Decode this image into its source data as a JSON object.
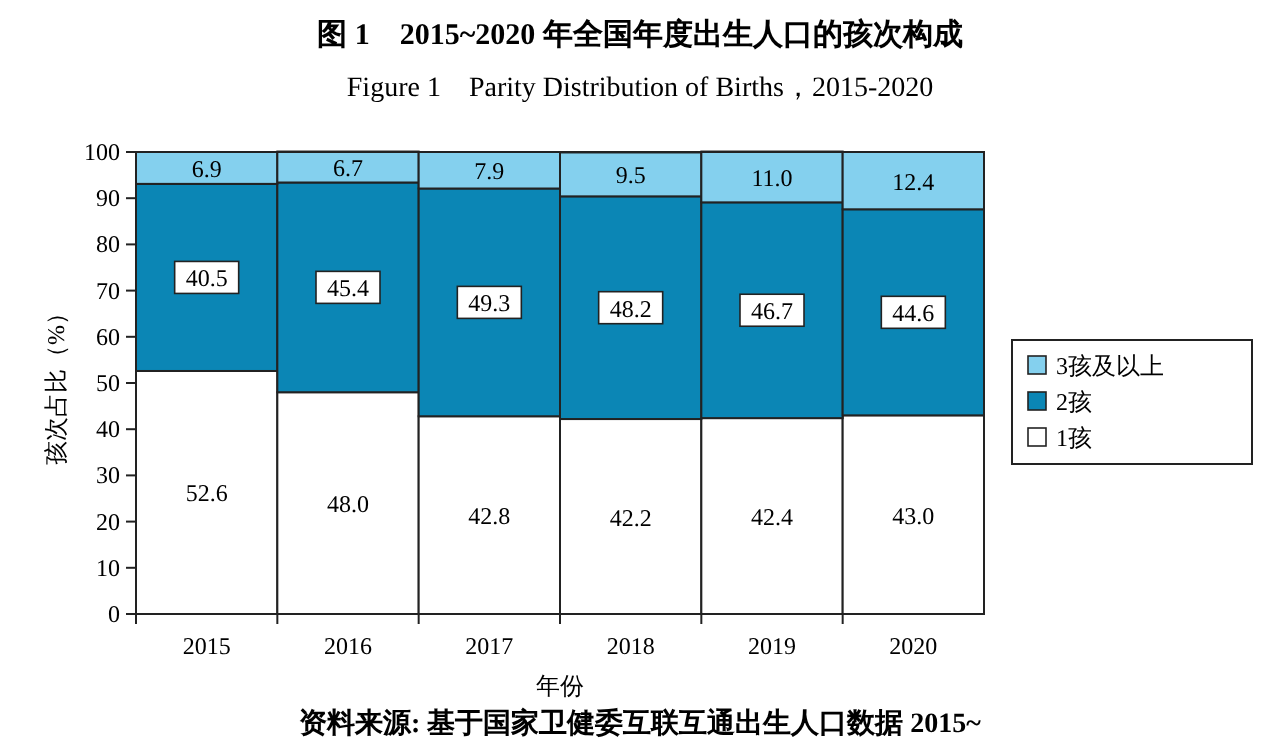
{
  "chart_data": {
    "type": "bar",
    "title": "图 1　2015~2020 年全国年度出生人口的孩次构成",
    "subtitle": "Figure 1　Parity Distribution of Births，2015-2020",
    "xlabel": "年份",
    "ylabel": "孩次占比（%）",
    "categories": [
      "2015",
      "2016",
      "2017",
      "2018",
      "2019",
      "2020"
    ],
    "stacked": true,
    "legend": "right",
    "ylim": [
      0,
      100
    ],
    "yticks": [
      0,
      10,
      20,
      30,
      40,
      50,
      60,
      70,
      80,
      90,
      100
    ],
    "series": [
      {
        "name": "1孩",
        "color": "#ffffff",
        "values": [
          52.6,
          48.0,
          42.8,
          42.2,
          42.4,
          43.0
        ],
        "value_labels": [
          "52.6",
          "48.0",
          "42.8",
          "42.2",
          "42.4",
          "43.0"
        ]
      },
      {
        "name": "2孩",
        "color": "#0b86b5",
        "values": [
          40.5,
          45.4,
          49.3,
          48.2,
          46.7,
          44.6
        ],
        "value_labels": [
          "40.5",
          "45.4",
          "49.3",
          "48.2",
          "46.7",
          "44.6"
        ]
      },
      {
        "name": "3孩及以上",
        "color": "#84d0ee",
        "values": [
          6.9,
          6.7,
          7.9,
          9.5,
          11.0,
          12.4
        ],
        "value_labels": [
          "6.9",
          "6.7",
          "7.9",
          "9.5",
          "11.0",
          "12.4"
        ]
      }
    ],
    "annotations": [
      "资料来源: 基于国家卫健委互联互通出生人口数据 2015~"
    ]
  }
}
